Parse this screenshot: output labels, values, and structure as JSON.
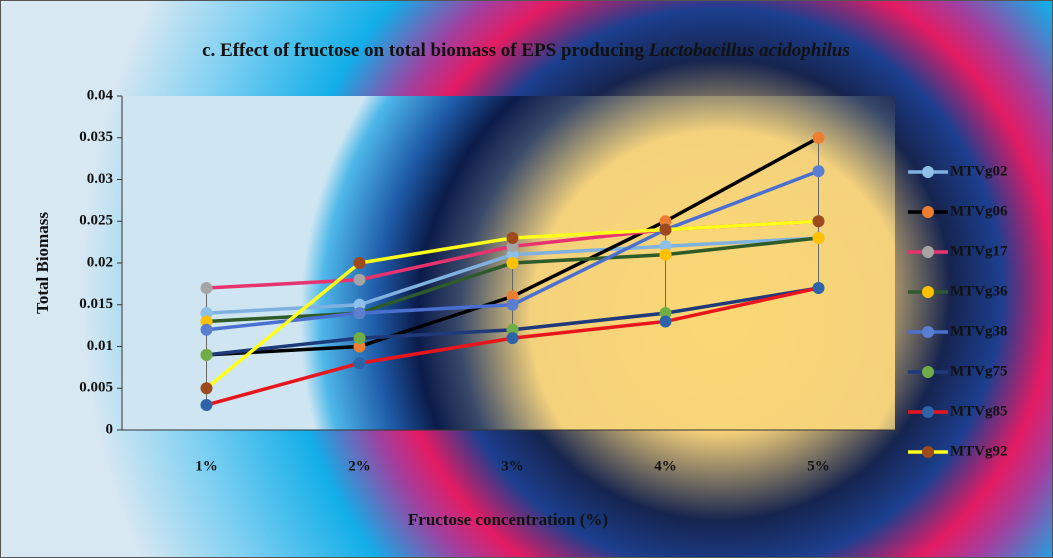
{
  "chart_data": {
    "type": "line",
    "title": [
      "c. Effect of fructose on total biomass of EPS producing",
      "Lactobacillus acidophilus"
    ],
    "x_label": "Fructose concentration (%)",
    "y_label": "Total Biomass",
    "categories": [
      "1%",
      "2%",
      "3%",
      "4%",
      "5%"
    ],
    "ylim": [
      0,
      0.04
    ],
    "yticks": [
      0,
      0.005,
      0.01,
      0.015,
      0.02,
      0.025,
      0.03,
      0.035,
      0.04
    ],
    "legend": "right",
    "series": [
      {
        "name": "MTVg02",
        "color": "#7fb2e0",
        "marker_color": "#8fc0ea",
        "values": [
          0.014,
          0.015,
          0.021,
          0.022,
          0.023
        ]
      },
      {
        "name": "MTVg06",
        "color": "#000000",
        "marker_color": "#ed7d31",
        "values": [
          0.009,
          0.01,
          0.016,
          0.025,
          0.035
        ]
      },
      {
        "name": "MTVg17",
        "color": "#e8336f",
        "marker_color": "#a5a5a5",
        "values": [
          0.017,
          0.018,
          0.022,
          0.024,
          0.025
        ]
      },
      {
        "name": "MTVg36",
        "color": "#2e5b2a",
        "marker_color": "#ffc000",
        "values": [
          0.013,
          0.014,
          0.02,
          0.021,
          0.023
        ]
      },
      {
        "name": "MTVg38",
        "color": "#4a6fd0",
        "marker_color": "#5b7fd0",
        "values": [
          0.012,
          0.014,
          0.015,
          0.024,
          0.031
        ]
      },
      {
        "name": "MTVg75",
        "color": "#1f3a7a",
        "marker_color": "#70ad47",
        "values": [
          0.009,
          0.011,
          0.012,
          0.014,
          0.017
        ]
      },
      {
        "name": "MTVg85",
        "color": "#e8161c",
        "marker_color": "#2e63a8",
        "values": [
          0.003,
          0.008,
          0.011,
          0.013,
          0.017
        ]
      },
      {
        "name": "MTVg92",
        "color": "#ffff1a",
        "marker_color": "#9e4a1c",
        "values": [
          0.005,
          0.02,
          0.023,
          0.024,
          0.025
        ]
      }
    ]
  }
}
